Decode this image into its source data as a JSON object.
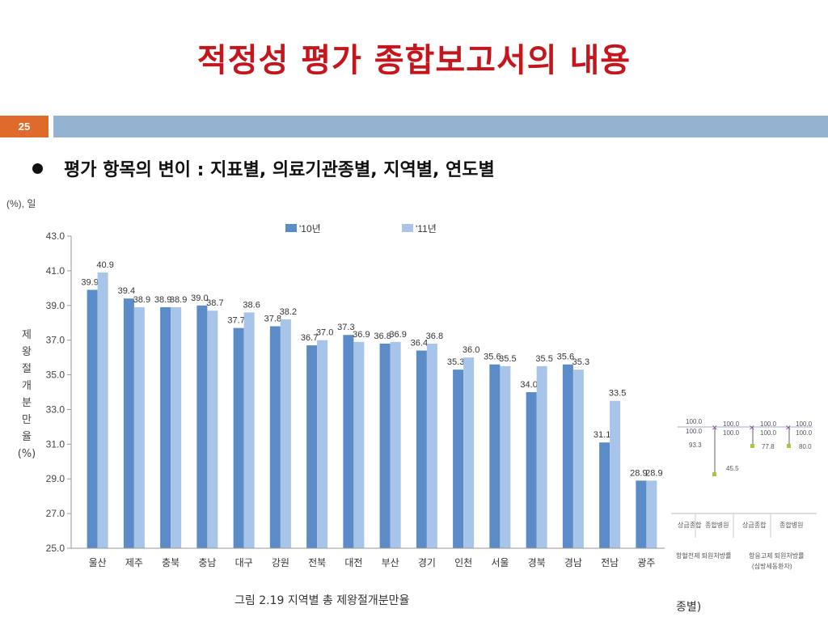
{
  "slide": {
    "title": "적정성 평가 종합보고서의 내용",
    "page_number": "25",
    "bullet": "평가 항목의 변이 : 지표별, 의료기관종별, 지역별, 연도별"
  },
  "colors": {
    "title": "#c4161c",
    "page_box": "#e06a2b",
    "header_bar": "#94b3d1",
    "series_2010": "#5b8cc8",
    "series_2011": "#a8c4e8"
  },
  "chart_data": {
    "type": "bar",
    "title": "",
    "caption": "그림 2.19 지역별 총 제왕절개분만율",
    "unit_note": "(%), 일",
    "ylabel": "제왕절개분만율(%)",
    "ylabel_chars": [
      "제",
      "왕",
      "절",
      "개",
      "분",
      "만",
      "율",
      "(%)"
    ],
    "xlabel": "",
    "ylim": [
      25.0,
      43.0
    ],
    "yticks": [
      "43.0",
      "41.0",
      "39.0",
      "37.0",
      "35.0",
      "33.0",
      "31.0",
      "29.0",
      "27.0",
      "25.0"
    ],
    "grid": false,
    "legend_position": "top-center",
    "categories": [
      "울산",
      "제주",
      "충북",
      "충남",
      "대구",
      "강원",
      "전북",
      "대전",
      "부산",
      "경기",
      "인천",
      "서울",
      "경북",
      "경남",
      "전남",
      "광주"
    ],
    "series": [
      {
        "name": "'10년",
        "values": [
          39.9,
          39.4,
          38.9,
          39.0,
          37.7,
          37.8,
          36.7,
          37.3,
          36.8,
          36.4,
          35.3,
          35.6,
          34.0,
          35.6,
          31.1,
          28.9
        ],
        "labels": [
          "39.9",
          "39.4",
          "38.9",
          "39.0",
          "37.7",
          "37.8",
          "36.7",
          "37.3",
          "36.8",
          "36.4",
          "35.3",
          "35.6",
          "34.0",
          "35.6",
          "31.1",
          "28.9"
        ]
      },
      {
        "name": "'11년",
        "values": [
          40.9,
          38.9,
          38.9,
          38.7,
          38.6,
          38.2,
          37.0,
          36.9,
          36.9,
          36.8,
          36.0,
          35.5,
          35.5,
          35.3,
          33.5,
          28.9
        ],
        "labels": [
          "40.9",
          "38.9",
          "38.9",
          "38.7",
          "38.6",
          "38.2",
          "37.0",
          "36.9",
          "36.9",
          "36.8",
          "36.0",
          "35.5",
          "35.5",
          "35.3",
          "33.5",
          "28.9"
        ]
      }
    ]
  },
  "background_fragment": {
    "values_row1": [
      "100.0",
      "100.0",
      "100.0",
      "100.0"
    ],
    "values_row2": [
      "100.0",
      "100.0",
      "100.0",
      "100.0"
    ],
    "values_low": [
      "93.3",
      "45.5",
      "77.8",
      "80.0"
    ],
    "table_cells": [
      "종합병원",
      "상급종합",
      "종합병원"
    ],
    "table_left_cut": "상급종합",
    "group1": "항혈전제 퇴원처방률",
    "group2": "항응고제 퇴원처방률",
    "group2_sub": "(심방세동환자)",
    "caption_fragment": "종별)"
  }
}
